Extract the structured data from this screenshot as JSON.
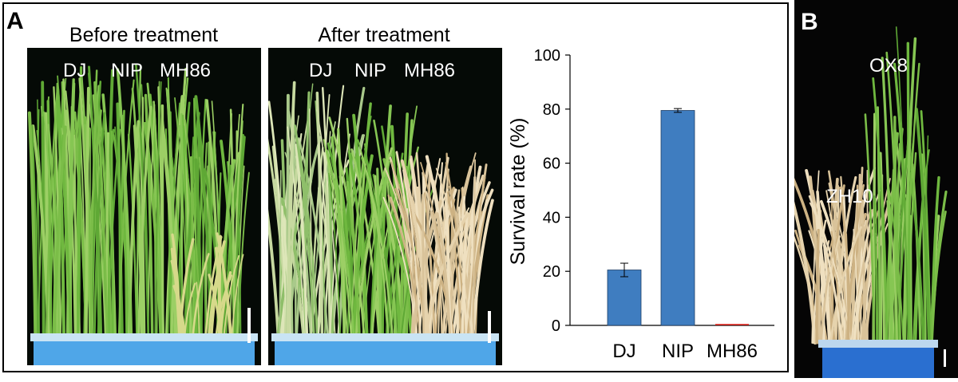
{
  "panel_a": {
    "letter": "A",
    "before": {
      "title": "Before treatment",
      "labels": [
        "DJ",
        "NIP",
        "MH86"
      ]
    },
    "after": {
      "title": "After treatment",
      "labels": [
        "DJ",
        "NIP",
        "MH86"
      ]
    }
  },
  "panel_b": {
    "letter": "B",
    "labels": {
      "top": "OX8",
      "left": "ZH10"
    }
  },
  "colors": {
    "bar": "#3f7dc0",
    "zero_bar": "#e8231c",
    "green_leaf": "#7fc24a",
    "dry_leaf": "#d9c39a",
    "tray": "#4fa6e8"
  },
  "chart_data": {
    "type": "bar",
    "categories": [
      "DJ",
      "NIP",
      "MH86"
    ],
    "values": [
      20.5,
      79.5,
      0
    ],
    "errors": [
      2.5,
      0.7,
      0
    ],
    "title": "",
    "xlabel": "",
    "ylabel": "Survival rate (%)",
    "ylim": [
      0,
      100
    ],
    "yticks": [
      0,
      20,
      40,
      60,
      80,
      100
    ],
    "grid": false
  }
}
